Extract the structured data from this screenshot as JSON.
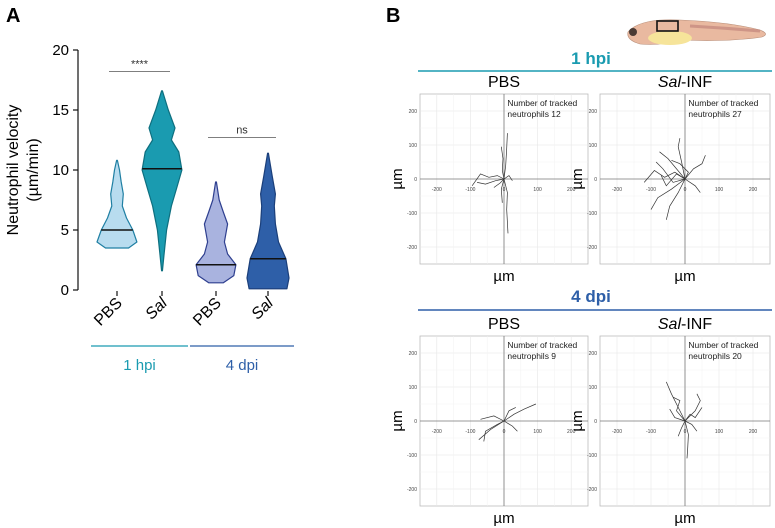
{
  "panel_a": {
    "letter": "A",
    "chart_data": {
      "type": "violin",
      "ylabel_line1": "Neutrophil velocity",
      "ylabel_line2": "(µm/min)",
      "ylim": [
        0,
        20
      ],
      "yticks": [
        "0",
        "5",
        "10",
        "15",
        "20"
      ],
      "categories": [
        "PBS",
        "Sal",
        "PBS",
        "Sal"
      ],
      "groups": [
        {
          "label": "1 hpi",
          "color": "#1a9bb0"
        },
        {
          "label": "4 dpi",
          "color": "#2e5fa8"
        }
      ],
      "series": [
        {
          "category": "PBS",
          "group": 0,
          "median": 5.0,
          "min": 3.5,
          "max": 10.8,
          "fill": "#b8dcef",
          "stroke": "#1f7fa3",
          "profile": [
            [
              3.5,
              0.55
            ],
            [
              4.0,
              0.95
            ],
            [
              5.0,
              0.75
            ],
            [
              6.0,
              0.45
            ],
            [
              7.0,
              0.25
            ],
            [
              8.0,
              0.3
            ],
            [
              9.0,
              0.2
            ],
            [
              10.0,
              0.12
            ],
            [
              10.8,
              0.02
            ]
          ]
        },
        {
          "category": "Sal",
          "group": 0,
          "median": 10.1,
          "min": 1.6,
          "max": 16.6,
          "fill": "#1a9bb0",
          "stroke": "#0e6f7f",
          "profile": [
            [
              1.6,
              0.02
            ],
            [
              3.0,
              0.1
            ],
            [
              5.0,
              0.22
            ],
            [
              7.0,
              0.45
            ],
            [
              8.5,
              0.7
            ],
            [
              10.0,
              0.95
            ],
            [
              11.5,
              0.8
            ],
            [
              12.5,
              0.45
            ],
            [
              13.5,
              0.62
            ],
            [
              15.0,
              0.3
            ],
            [
              16.6,
              0.02
            ]
          ]
        },
        {
          "category": "PBS",
          "group": 1,
          "median": 2.1,
          "min": 0.6,
          "max": 9.0,
          "fill": "#a9b3df",
          "stroke": "#2e3f8f",
          "profile": [
            [
              0.6,
              0.35
            ],
            [
              1.2,
              0.85
            ],
            [
              2.1,
              0.95
            ],
            [
              3.0,
              0.55
            ],
            [
              4.0,
              0.4
            ],
            [
              5.5,
              0.55
            ],
            [
              6.5,
              0.35
            ],
            [
              7.5,
              0.15
            ],
            [
              9.0,
              0.02
            ]
          ]
        },
        {
          "category": "Sal",
          "group": 1,
          "median": 2.6,
          "min": 0.1,
          "max": 11.4,
          "fill": "#2e5fa8",
          "stroke": "#1b3f7a",
          "profile": [
            [
              0.1,
              0.9
            ],
            [
              1.0,
              1.0
            ],
            [
              2.6,
              0.85
            ],
            [
              4.0,
              0.5
            ],
            [
              5.5,
              0.35
            ],
            [
              7.0,
              0.3
            ],
            [
              8.0,
              0.35
            ],
            [
              9.5,
              0.2
            ],
            [
              11.4,
              0.02
            ]
          ]
        }
      ],
      "significance": [
        {
          "text": "****",
          "between": [
            0,
            1
          ],
          "y": 18.2
        },
        {
          "text": "ns",
          "between": [
            2,
            3
          ],
          "y": 12.7
        }
      ]
    }
  },
  "panel_b": {
    "letter": "B",
    "header_1hpi": "1 hpi",
    "header_4dpi": "4 dpi",
    "header_1hpi_color": "#1a9bb0",
    "header_4dpi_color": "#2e5fa8",
    "plots": [
      {
        "title": "PBS",
        "italic_part": "",
        "annot_line1": "Number of tracked",
        "annot_line2": "neutrophils 12",
        "xlabel": "µm",
        "ylabel": "µm",
        "ticks": [
          "-200",
          "-100",
          "0",
          "100",
          "200"
        ],
        "tracks": [
          [
            [
              0,
              0
            ],
            [
              -20,
              10
            ],
            [
              -45,
              5
            ],
            [
              -70,
              15
            ],
            [
              -95,
              -20
            ]
          ],
          [
            [
              0,
              0
            ],
            [
              -25,
              -5
            ],
            [
              -55,
              -15
            ],
            [
              -80,
              -10
            ]
          ],
          [
            [
              0,
              0
            ],
            [
              5,
              40
            ],
            [
              8,
              90
            ],
            [
              10,
              135
            ]
          ],
          [
            [
              0,
              0
            ],
            [
              -5,
              25
            ],
            [
              -3,
              60
            ],
            [
              -8,
              95
            ]
          ],
          [
            [
              0,
              0
            ],
            [
              10,
              -40
            ],
            [
              8,
              -90
            ],
            [
              12,
              -160
            ]
          ],
          [
            [
              0,
              0
            ],
            [
              -8,
              -30
            ],
            [
              -5,
              -70
            ]
          ],
          [
            [
              0,
              0
            ],
            [
              15,
              10
            ],
            [
              25,
              -5
            ]
          ],
          [
            [
              0,
              0
            ],
            [
              -12,
              -12
            ],
            [
              -30,
              -25
            ]
          ]
        ]
      },
      {
        "title": "-INF",
        "italic_part": "Sal",
        "annot_line1": "Number of tracked",
        "annot_line2": "neutrophils 27",
        "xlabel": "µm",
        "ylabel": "µm",
        "ticks": [
          "-200",
          "-100",
          "0",
          "100",
          "200"
        ],
        "tracks": [
          [
            [
              0,
              0
            ],
            [
              -30,
              20
            ],
            [
              -60,
              5
            ],
            [
              -90,
              25
            ],
            [
              -120,
              -10
            ]
          ],
          [
            [
              0,
              0
            ],
            [
              -20,
              -40
            ],
            [
              -45,
              -80
            ],
            [
              -55,
              -120
            ]
          ],
          [
            [
              0,
              0
            ],
            [
              -40,
              -30
            ],
            [
              -80,
              -55
            ],
            [
              -100,
              -90
            ]
          ],
          [
            [
              0,
              0
            ],
            [
              25,
              30
            ],
            [
              50,
              45
            ],
            [
              60,
              70
            ]
          ],
          [
            [
              0,
              0
            ],
            [
              -10,
              50
            ],
            [
              -20,
              95
            ],
            [
              -15,
              120
            ]
          ],
          [
            [
              0,
              0
            ],
            [
              -50,
              60
            ],
            [
              -75,
              80
            ]
          ],
          [
            [
              0,
              0
            ],
            [
              30,
              -20
            ],
            [
              45,
              -40
            ]
          ],
          [
            [
              0,
              0
            ],
            [
              -25,
              15
            ],
            [
              -55,
              -20
            ],
            [
              -70,
              10
            ]
          ],
          [
            [
              0,
              0
            ],
            [
              10,
              20
            ],
            [
              -15,
              45
            ],
            [
              -40,
              55
            ]
          ],
          [
            [
              0,
              0
            ],
            [
              -35,
              -10
            ],
            [
              -65,
              30
            ],
            [
              -85,
              50
            ]
          ]
        ]
      },
      {
        "title": "PBS",
        "italic_part": "",
        "annot_line1": "Number of tracked",
        "annot_line2": "neutrophils 9",
        "xlabel": "µm",
        "ylabel": "µm",
        "ticks": [
          "-200",
          "-100",
          "0",
          "100",
          "200"
        ],
        "tracks": [
          [
            [
              0,
              0
            ],
            [
              -40,
              -25
            ],
            [
              -75,
              -55
            ]
          ],
          [
            [
              0,
              0
            ],
            [
              30,
              20
            ],
            [
              60,
              35
            ],
            [
              95,
              50
            ]
          ],
          [
            [
              0,
              0
            ],
            [
              -20,
              -10
            ],
            [
              -55,
              -30
            ],
            [
              -60,
              -60
            ]
          ],
          [
            [
              0,
              0
            ],
            [
              25,
              -15
            ],
            [
              40,
              -30
            ]
          ],
          [
            [
              0,
              0
            ],
            [
              -30,
              15
            ],
            [
              -70,
              5
            ]
          ],
          [
            [
              0,
              0
            ],
            [
              15,
              30
            ],
            [
              35,
              40
            ]
          ]
        ]
      },
      {
        "title": "-INF",
        "italic_part": "Sal",
        "annot_line1": "Number of tracked",
        "annot_line2": "neutrophils 20",
        "xlabel": "µm",
        "ylabel": "µm",
        "ticks": [
          "-200",
          "-100",
          "0",
          "100",
          "200"
        ],
        "tracks": [
          [
            [
              0,
              0
            ],
            [
              -20,
              40
            ],
            [
              -40,
              80
            ],
            [
              -55,
              115
            ]
          ],
          [
            [
              0,
              0
            ],
            [
              10,
              -40
            ],
            [
              8,
              -80
            ],
            [
              6,
              -110
            ]
          ],
          [
            [
              0,
              0
            ],
            [
              30,
              30
            ],
            [
              45,
              60
            ],
            [
              35,
              80
            ]
          ],
          [
            [
              0,
              0
            ],
            [
              -30,
              10
            ],
            [
              -45,
              35
            ]
          ],
          [
            [
              0,
              0
            ],
            [
              15,
              20
            ],
            [
              30,
              10
            ],
            [
              50,
              40
            ]
          ],
          [
            [
              0,
              0
            ],
            [
              -10,
              -20
            ],
            [
              -20,
              -45
            ]
          ],
          [
            [
              0,
              0
            ],
            [
              20,
              -10
            ],
            [
              35,
              -30
            ]
          ],
          [
            [
              0,
              0
            ],
            [
              -25,
              30
            ],
            [
              -15,
              60
            ],
            [
              -35,
              70
            ]
          ]
        ]
      }
    ]
  }
}
